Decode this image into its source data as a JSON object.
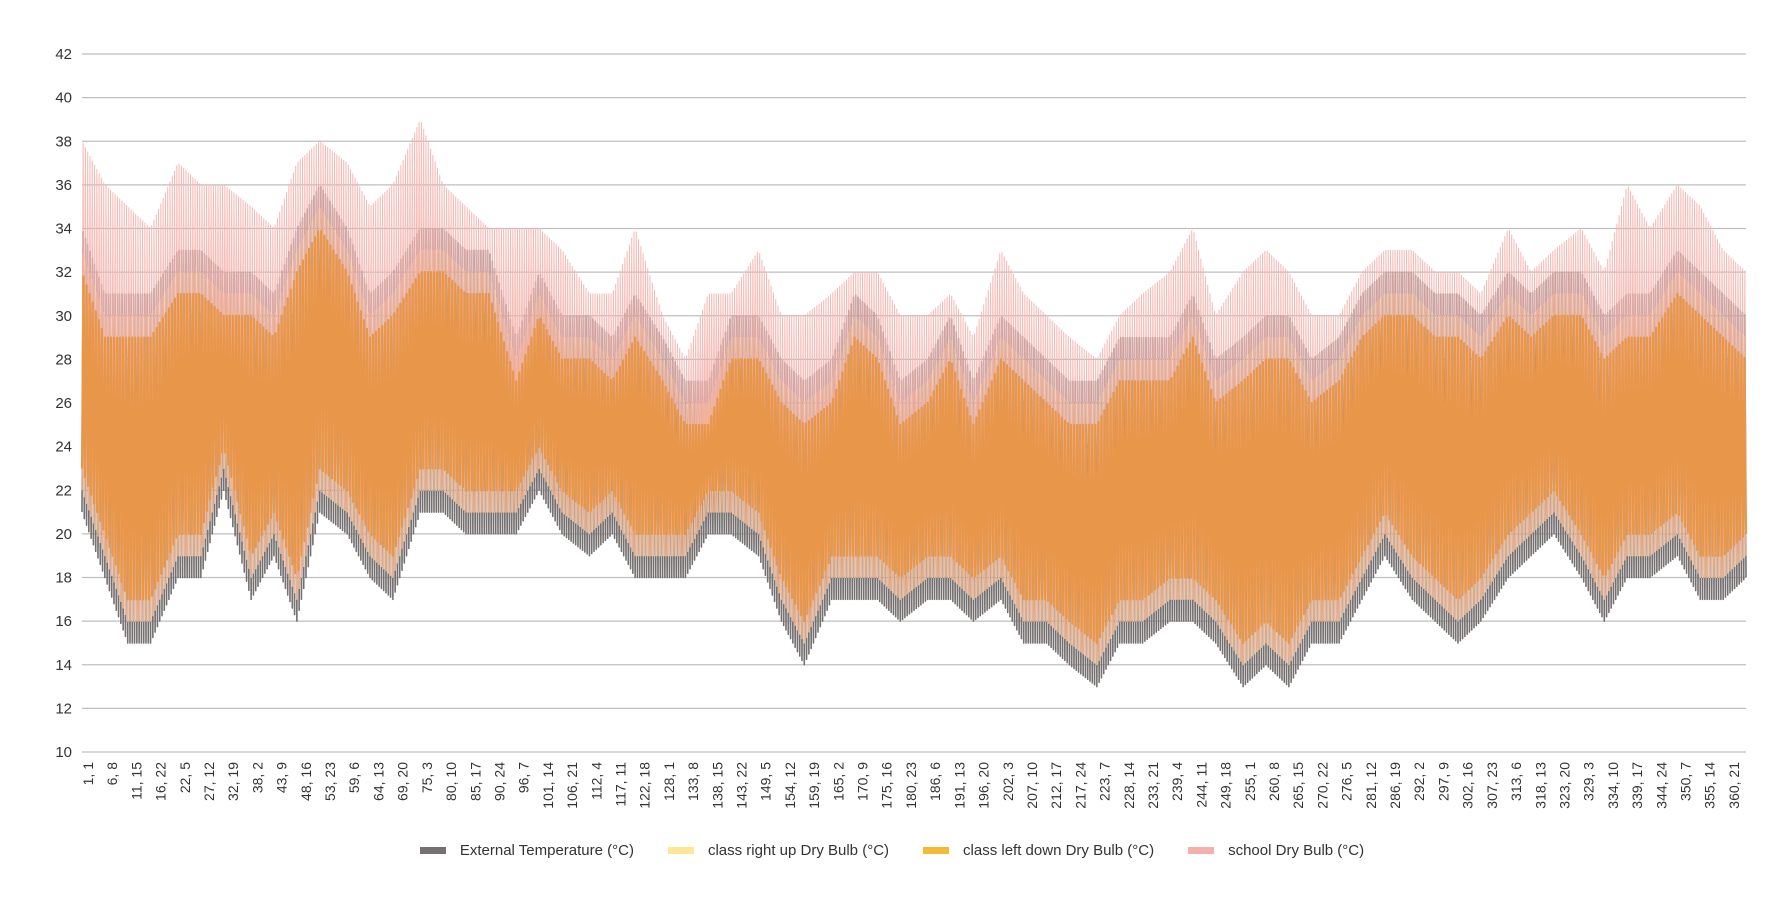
{
  "chart_data": {
    "type": "line",
    "title": "",
    "xlabel": "",
    "ylabel": "",
    "ylim": [
      10,
      42
    ],
    "yticks": [
      10,
      12,
      14,
      16,
      18,
      20,
      22,
      24,
      26,
      28,
      30,
      32,
      34,
      36,
      38,
      40,
      42
    ],
    "grid": true,
    "legend_position": "bottom",
    "x_tick_labels": [
      "1, 1",
      "6, 8",
      "11, 15",
      "16, 22",
      "22, 5",
      "27, 12",
      "32, 19",
      "38, 2",
      "43, 9",
      "48, 16",
      "53, 23",
      "59, 6",
      "64, 13",
      "69, 20",
      "75, 3",
      "80, 10",
      "85, 17",
      "90, 24",
      "96, 7",
      "101, 14",
      "106, 21",
      "112, 4",
      "117, 11",
      "122, 18",
      "128, 1",
      "133, 8",
      "138, 15",
      "143, 22",
      "149, 5",
      "154, 12",
      "159, 19",
      "165, 2",
      "170, 9",
      "175, 16",
      "180, 23",
      "186, 6",
      "191, 13",
      "196, 20",
      "202, 3",
      "207, 10",
      "212, 17",
      "217, 24",
      "223, 7",
      "228, 14",
      "233, 21",
      "239, 4",
      "244, 11",
      "249, 18",
      "255, 1",
      "260, 8",
      "265, 15",
      "270, 22",
      "276, 5",
      "281, 12",
      "286, 19",
      "292, 2",
      "297, 9",
      "302, 16",
      "307, 23",
      "313, 6",
      "318, 13",
      "323, 20",
      "329, 3",
      "334, 10",
      "339, 17",
      "344, 24",
      "350, 7",
      "355, 14",
      "360, 21"
    ],
    "x_range_days": [
      1,
      365
    ],
    "envelope_days": [
      1,
      6,
      11,
      16,
      22,
      27,
      32,
      38,
      43,
      48,
      53,
      59,
      64,
      69,
      75,
      80,
      85,
      90,
      96,
      101,
      106,
      112,
      117,
      122,
      128,
      133,
      138,
      143,
      149,
      154,
      159,
      165,
      170,
      175,
      180,
      186,
      191,
      196,
      202,
      207,
      212,
      217,
      223,
      228,
      233,
      239,
      244,
      249,
      255,
      260,
      265,
      270,
      276,
      281,
      286,
      292,
      297,
      302,
      307,
      313,
      318,
      323,
      329,
      334,
      339,
      344,
      350,
      355,
      360,
      365
    ],
    "series": [
      {
        "name": "External Temperature (°C)",
        "color": "#767171",
        "daily_min": [
          21,
          18,
          15,
          15,
          18,
          18,
          22,
          17,
          19,
          16,
          21,
          20,
          18,
          17,
          21,
          21,
          20,
          20,
          20,
          22,
          20,
          19,
          20,
          18,
          18,
          18,
          20,
          20,
          19,
          16,
          14,
          17,
          17,
          17,
          16,
          17,
          17,
          16,
          17,
          15,
          15,
          14,
          13,
          15,
          15,
          16,
          16,
          15,
          13,
          14,
          13,
          15,
          15,
          17,
          19,
          17,
          16,
          15,
          16,
          18,
          19,
          20,
          18,
          16,
          18,
          18,
          19,
          17,
          17,
          18
        ],
        "daily_max": [
          34,
          31,
          31,
          31,
          33,
          33,
          32,
          32,
          31,
          34,
          36,
          34,
          31,
          32,
          34,
          34,
          33,
          33,
          29,
          32,
          30,
          30,
          29,
          31,
          29,
          27,
          27,
          30,
          30,
          28,
          27,
          28,
          31,
          30,
          27,
          28,
          30,
          27,
          30,
          29,
          28,
          27,
          27,
          29,
          29,
          29,
          31,
          28,
          29,
          30,
          30,
          28,
          29,
          31,
          32,
          32,
          31,
          31,
          30,
          32,
          31,
          32,
          32,
          30,
          31,
          31,
          33,
          32,
          31,
          30
        ]
      },
      {
        "name": "class right up Dry Bulb (°C)",
        "color": "#FFE699",
        "daily_min": [
          22,
          19,
          16,
          16,
          19,
          19,
          23,
          18,
          20,
          17,
          22,
          21,
          19,
          18,
          22,
          22,
          21,
          21,
          21,
          23,
          21,
          20,
          21,
          19,
          19,
          19,
          21,
          21,
          20,
          17,
          15,
          18,
          18,
          18,
          17,
          18,
          18,
          17,
          18,
          16,
          16,
          15,
          14,
          16,
          16,
          17,
          17,
          16,
          14,
          15,
          14,
          16,
          16,
          18,
          20,
          18,
          17,
          16,
          17,
          19,
          20,
          21,
          19,
          17,
          19,
          19,
          20,
          18,
          18,
          19
        ],
        "daily_max": [
          33,
          30,
          30,
          30,
          32,
          32,
          31,
          31,
          30,
          33,
          35,
          33,
          30,
          31,
          33,
          33,
          32,
          32,
          28,
          31,
          29,
          29,
          28,
          30,
          28,
          26,
          26,
          29,
          29,
          27,
          26,
          27,
          30,
          29,
          26,
          27,
          29,
          26,
          29,
          28,
          27,
          26,
          26,
          28,
          28,
          28,
          30,
          27,
          28,
          29,
          29,
          27,
          28,
          30,
          31,
          31,
          30,
          30,
          29,
          31,
          30,
          31,
          31,
          29,
          30,
          30,
          32,
          31,
          30,
          29
        ]
      },
      {
        "name": "class left down Dry Bulb (°C)",
        "color": "#F4B935",
        "daily_min": [
          22,
          19,
          16,
          16,
          19,
          19,
          23,
          18,
          20,
          17,
          22,
          21,
          19,
          18,
          22,
          22,
          21,
          21,
          21,
          23,
          21,
          20,
          21,
          19,
          19,
          19,
          21,
          21,
          20,
          17,
          15,
          18,
          18,
          18,
          17,
          18,
          18,
          17,
          18,
          16,
          16,
          15,
          14,
          16,
          16,
          17,
          17,
          16,
          14,
          15,
          14,
          16,
          16,
          18,
          20,
          18,
          17,
          16,
          17,
          19,
          20,
          21,
          19,
          17,
          19,
          19,
          20,
          18,
          18,
          19
        ],
        "daily_max": [
          33,
          30,
          30,
          30,
          32,
          32,
          31,
          31,
          30,
          33,
          35,
          33,
          30,
          31,
          33,
          33,
          32,
          32,
          28,
          31,
          29,
          29,
          28,
          30,
          28,
          26,
          26,
          29,
          29,
          27,
          26,
          27,
          30,
          29,
          26,
          27,
          29,
          26,
          29,
          28,
          27,
          26,
          26,
          28,
          28,
          28,
          30,
          27,
          28,
          29,
          29,
          27,
          28,
          30,
          31,
          31,
          30,
          30,
          29,
          31,
          30,
          31,
          31,
          29,
          30,
          30,
          32,
          31,
          30,
          29
        ]
      },
      {
        "name": "school Dry Bulb (°C)",
        "color": "#F4B1AC",
        "daily_min": [
          22,
          19,
          16,
          16,
          19,
          19,
          23,
          18,
          20,
          17,
          22,
          21,
          19,
          18,
          22,
          22,
          21,
          21,
          21,
          23,
          21,
          20,
          21,
          19,
          19,
          19,
          21,
          21,
          20,
          17,
          15,
          18,
          18,
          18,
          17,
          18,
          18,
          17,
          18,
          16,
          16,
          15,
          14,
          16,
          16,
          17,
          17,
          16,
          14,
          15,
          14,
          16,
          16,
          18,
          20,
          18,
          17,
          16,
          17,
          19,
          20,
          21,
          19,
          17,
          19,
          19,
          20,
          18,
          18,
          19
        ],
        "daily_max": [
          38,
          36,
          35,
          34,
          37,
          36,
          36,
          35,
          34,
          37,
          38,
          37,
          35,
          36,
          39,
          36,
          35,
          34,
          34,
          34,
          33,
          31,
          31,
          34,
          30,
          28,
          31,
          31,
          33,
          30,
          30,
          31,
          32,
          32,
          30,
          30,
          31,
          29,
          33,
          31,
          30,
          29,
          28,
          30,
          31,
          32,
          34,
          30,
          32,
          33,
          32,
          30,
          30,
          32,
          33,
          33,
          32,
          32,
          31,
          34,
          32,
          33,
          34,
          32,
          36,
          34,
          36,
          35,
          33,
          32
        ]
      }
    ]
  }
}
